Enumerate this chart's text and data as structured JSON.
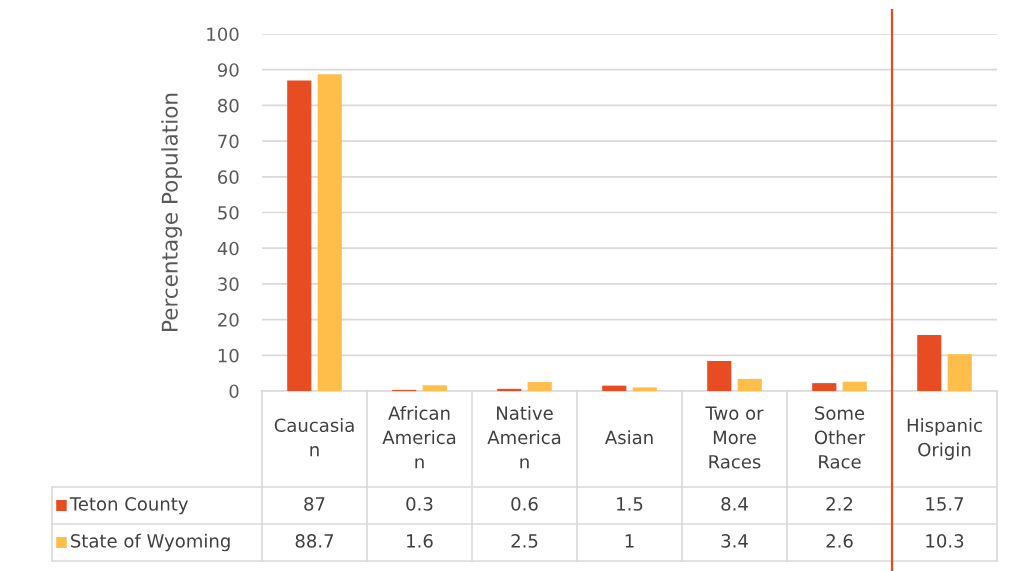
{
  "chart_data": {
    "type": "bar",
    "ylabel": "Percentage Population",
    "categories": [
      "Caucasian",
      "African American",
      "Native American",
      "Asian",
      "Two or More Races",
      "Some Other Race",
      "Hispanic Origin"
    ],
    "series": [
      {
        "name": "Teton County",
        "color": "#e84c22",
        "values": [
          87,
          0.3,
          0.6,
          1.5,
          8.4,
          2.2,
          15.7
        ]
      },
      {
        "name": "State of Wyoming",
        "color": "#ffbd4a",
        "values": [
          88.7,
          1.6,
          2.5,
          1,
          3.4,
          2.6,
          10.3
        ]
      }
    ],
    "ylim": [
      0,
      100
    ],
    "yticks": [
      0,
      10,
      20,
      30,
      40,
      50,
      60,
      70,
      80,
      90,
      100
    ],
    "grid": "y",
    "legend": "bottom",
    "data_labels": true,
    "ref_lines": [
      {
        "axis": "x",
        "value": "Hispanic Origin",
        "color": "#e84c22"
      }
    ]
  }
}
